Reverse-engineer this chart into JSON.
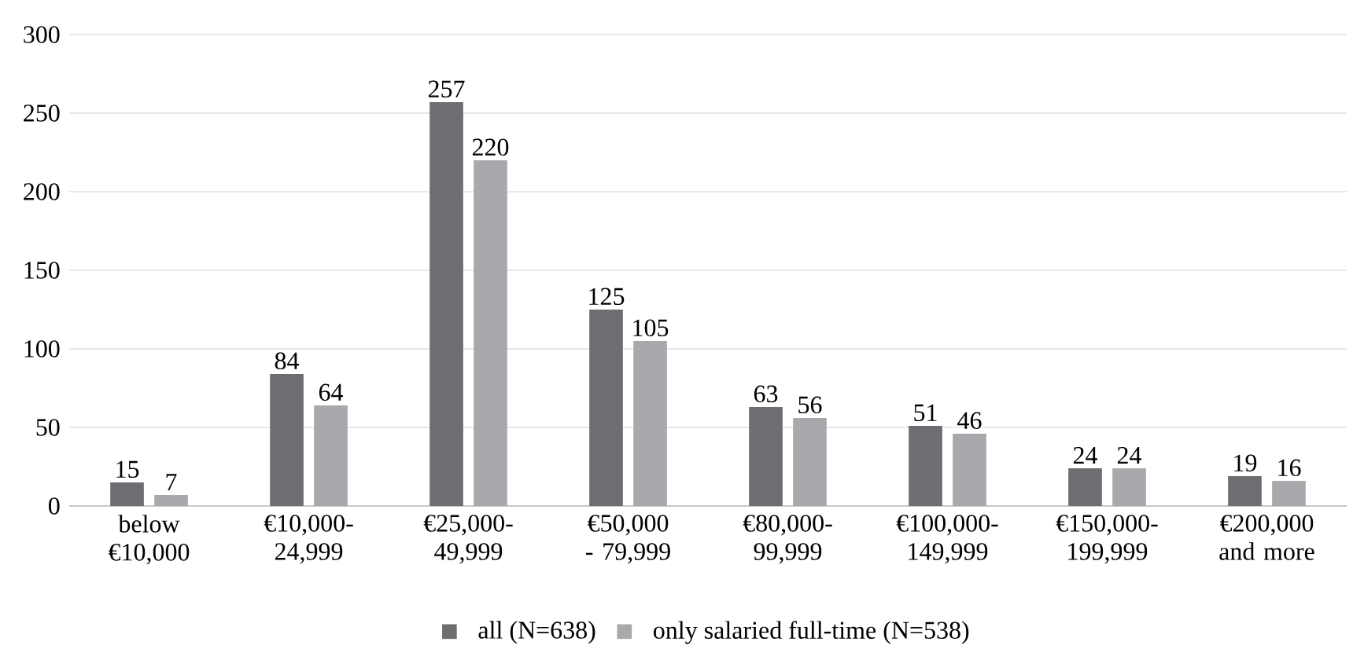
{
  "chart_data": {
    "type": "bar",
    "categories": [
      "below €10,000",
      "€10,000-24,999",
      "€25,000-49,999",
      "€50,000 - 79,999",
      "€80,000-99,999",
      "€100,000-149,999",
      "€150,000-199,999",
      "€200,000 and more"
    ],
    "series": [
      {
        "name": "all (N=638)",
        "color": "#6d6e71",
        "values": [
          15,
          84,
          257,
          125,
          63,
          51,
          24,
          19
        ]
      },
      {
        "name": "only salaried full-time (N=538)",
        "color": "#a7a9ac",
        "values": [
          7,
          64,
          220,
          105,
          56,
          46,
          24,
          16
        ]
      }
    ],
    "ylim": [
      0,
      300
    ],
    "yticks": [
      0,
      50,
      100,
      150,
      200,
      250,
      300
    ],
    "grid": "y",
    "legend": "bottom",
    "data_labels": true
  }
}
